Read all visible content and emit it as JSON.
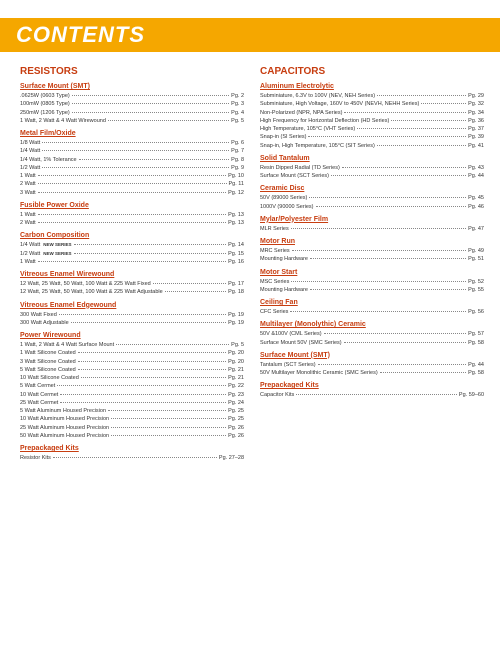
{
  "title": "CONTENTS",
  "colors": {
    "accent_bar": "#f5a700",
    "heading": "#c73d10",
    "text": "#333333",
    "title_text": "#ffffff",
    "background": "#ffffff"
  },
  "columns": [
    {
      "heading": "RESISTORS",
      "sections": [
        {
          "title": "Surface Mount (SMT)",
          "items": [
            {
              "label": ".0625W (0603 Type)",
              "page": "Pg. 2"
            },
            {
              "label": "100mW (0805 Type)",
              "page": "Pg. 3"
            },
            {
              "label": "250mW (1206 Type)",
              "page": "Pg. 4"
            },
            {
              "label": "1 Watt,  2 Watt & 4 Watt Wirewound",
              "page": "Pg. 5"
            }
          ]
        },
        {
          "title": "Metal Film/Oxide",
          "items": [
            {
              "label": "1/8 Watt",
              "page": "Pg. 6"
            },
            {
              "label": "1/4 Watt",
              "page": "Pg. 7"
            },
            {
              "label": "1/4 Watt, 1% Tolerance",
              "page": "Pg. 8"
            },
            {
              "label": "1/2 Watt",
              "page": "Pg. 9"
            },
            {
              "label": "1 Watt",
              "page": "Pg. 10"
            },
            {
              "label": "2 Watt",
              "page": "Pg. 11"
            },
            {
              "label": "3 Watt",
              "page": "Pg. 12"
            }
          ]
        },
        {
          "title": "Fusible Power Oxide",
          "items": [
            {
              "label": "1 Watt",
              "page": "Pg. 13"
            },
            {
              "label": "2 Watt",
              "page": "Pg. 13"
            }
          ]
        },
        {
          "title": "Carbon Composition",
          "items": [
            {
              "label": "1/4 Watt",
              "badge": "NEW SERIES",
              "page": "Pg. 14"
            },
            {
              "label": "1/2 Watt",
              "badge": "NEW SERIES",
              "page": "Pg. 15"
            },
            {
              "label": "1 Watt",
              "page": "Pg. 16"
            }
          ]
        },
        {
          "title": "Vitreous Enamel Wirewound",
          "items": [
            {
              "label": "12 Watt, 25 Watt, 50 Watt, 100 Watt & 225 Watt Fixed",
              "page": "Pg. 17"
            },
            {
              "label": "12 Watt, 25 Watt, 50 Watt, 100 Watt & 225 Watt Adjustable",
              "page": "Pg. 18"
            }
          ]
        },
        {
          "title": "Vitreous Enamel Edgewound",
          "items": [
            {
              "label": "300 Watt Fixed",
              "page": "Pg. 19"
            },
            {
              "label": "300 Watt Adjustable",
              "page": "Pg. 19"
            }
          ]
        },
        {
          "title": "Power Wirewound",
          "items": [
            {
              "label": "1 Watt,  2 Watt & 4 Watt Surface Mount",
              "page": "Pg. 5"
            },
            {
              "label": "1 Watt Silicone Coated",
              "page": "Pg. 20"
            },
            {
              "label": "3 Watt Silicone Coated",
              "page": "Pg. 20"
            },
            {
              "label": "5 Watt Silicone Coated",
              "page": "Pg. 21"
            },
            {
              "label": "10 Watt Silicone Coated",
              "page": "Pg. 21"
            },
            {
              "label": "5 Watt Cermet",
              "page": "Pg. 22"
            },
            {
              "label": "10 Watt Cermet",
              "page": "Pg. 23"
            },
            {
              "label": "25 Watt Cermet",
              "page": "Pg. 24"
            },
            {
              "label": "5 Watt Aluminum Housed Precision",
              "page": "Pg. 25"
            },
            {
              "label": "10 Watt Aluminum Housed Precision",
              "page": "Pg. 25"
            },
            {
              "label": "25 Watt Aluminum Housed Precision",
              "page": "Pg. 26"
            },
            {
              "label": "50 Watt Aluminum Housed Precision",
              "page": "Pg. 26"
            }
          ]
        },
        {
          "title": "Prepackaged Kits",
          "items": [
            {
              "label": "Resistor Kits",
              "page": "Pg. 27–28"
            }
          ]
        }
      ]
    },
    {
      "heading": "CAPACITORS",
      "sections": [
        {
          "title": "Aluminum Electrolytic",
          "items": [
            {
              "label": "Subminiature, 6.3V to 100V (NEV, NEH Series)",
              "page": "Pg. 29"
            },
            {
              "label": "Subminiature, High Voltage, 160V to 450V (NEVH, NEHH Series)",
              "page": "Pg. 32"
            },
            {
              "label": "Non-Polarized (NPR, NPA Series)",
              "page": "Pg. 34"
            },
            {
              "label": "High Frequency for Horizontal Deflection (HD Series)",
              "page": "Pg. 36"
            },
            {
              "label": "High Temperature, 105°C (VHT Series)",
              "page": "Pg. 37"
            },
            {
              "label": "Snap-in (SI Series)",
              "page": "Pg. 39"
            },
            {
              "label": "Snap-in, High Temperature, 105°C (SIT Series)",
              "page": "Pg. 41"
            }
          ]
        },
        {
          "title": "Solid Tantalum",
          "items": [
            {
              "label": "Resin Dipped Radial (TD Series)",
              "page": "Pg. 43"
            },
            {
              "label": "Surface Mount (SCT Series)",
              "page": "Pg. 44"
            }
          ]
        },
        {
          "title": "Ceramic Disc",
          "items": [
            {
              "label": "50V (89000 Series)",
              "page": "Pg. 45"
            },
            {
              "label": "1000V (90000 Series)",
              "page": "Pg. 46"
            }
          ]
        },
        {
          "title": "Mylar/Polyester Film",
          "items": [
            {
              "label": "MLR Series",
              "page": "Pg. 47"
            }
          ]
        },
        {
          "title": "Motor Run",
          "items": [
            {
              "label": "MRC Series",
              "page": "Pg. 49"
            },
            {
              "label": "Mounting Hardware",
              "page": "Pg. 51"
            }
          ]
        },
        {
          "title": "Motor Start",
          "items": [
            {
              "label": "MSC Series",
              "page": "Pg. 52"
            },
            {
              "label": "Mounting Hardware",
              "page": "Pg. 55"
            }
          ]
        },
        {
          "title": "Ceiling Fan",
          "items": [
            {
              "label": "CFC Series",
              "page": "Pg. 56"
            }
          ]
        },
        {
          "title": "Multilayer (Monolythic) Ceramic",
          "items": [
            {
              "label": "50V &100V (CML Series)",
              "page": "Pg. 57"
            },
            {
              "label": "Surface Mount 50V (SMC Series)",
              "page": "Pg. 58"
            }
          ]
        },
        {
          "title": "Surface Mount (SMT)",
          "items": [
            {
              "label": "Tantalum (SCT Series)",
              "page": "Pg. 44"
            },
            {
              "label": "50V Multilayer Monolithic Ceramic (SMC Series)",
              "page": "Pg. 58"
            }
          ]
        },
        {
          "title": "Prepackaged Kits",
          "items": [
            {
              "label": "Capacitor Kits",
              "page": "Pg. 59–60"
            }
          ]
        }
      ]
    }
  ]
}
